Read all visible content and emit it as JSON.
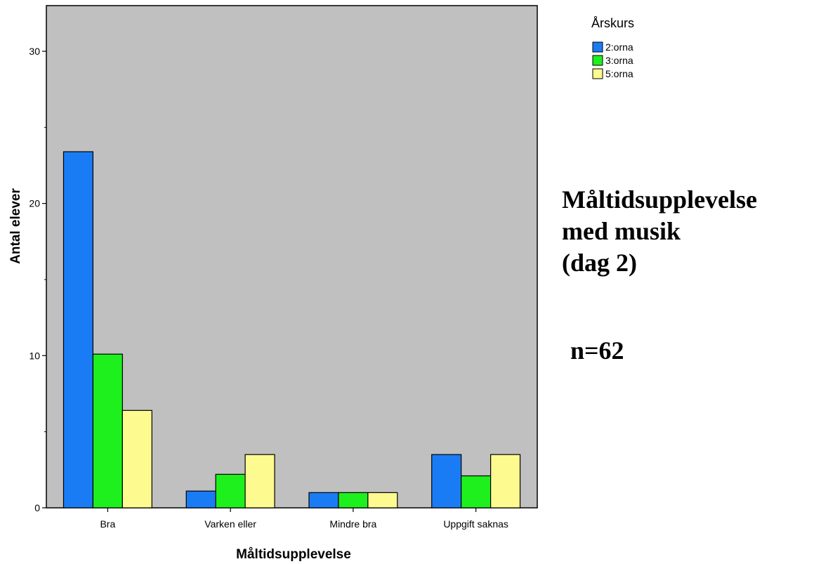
{
  "chart_data": {
    "type": "bar",
    "title": "",
    "xlabel": "Måltidsupplevelse",
    "ylabel": "Antal elever",
    "categories": [
      "Bra",
      "Varken eller",
      "Mindre bra",
      "Uppgift saknas"
    ],
    "series": [
      {
        "name": "2:orna",
        "color": "#1a7cf5",
        "values": [
          23.4,
          1.1,
          1.0,
          3.5
        ]
      },
      {
        "name": "3:orna",
        "color": "#1ef01e",
        "values": [
          10.1,
          2.2,
          1.0,
          2.1
        ]
      },
      {
        "name": "5:orna",
        "color": "#fdfa8f",
        "values": [
          6.4,
          3.5,
          1.0,
          3.5
        ]
      }
    ],
    "ylim": [
      0,
      33
    ],
    "yticks": [
      0,
      10,
      20,
      30
    ],
    "plot_background": "#c0c0c0",
    "grid": false,
    "legend": {
      "title": "Årskurs",
      "placement": "top-right"
    }
  },
  "annotation": {
    "title_lines": [
      "Måltidsupplevelse",
      "med musik",
      "(dag 2)"
    ],
    "sample_size": "n=62"
  }
}
